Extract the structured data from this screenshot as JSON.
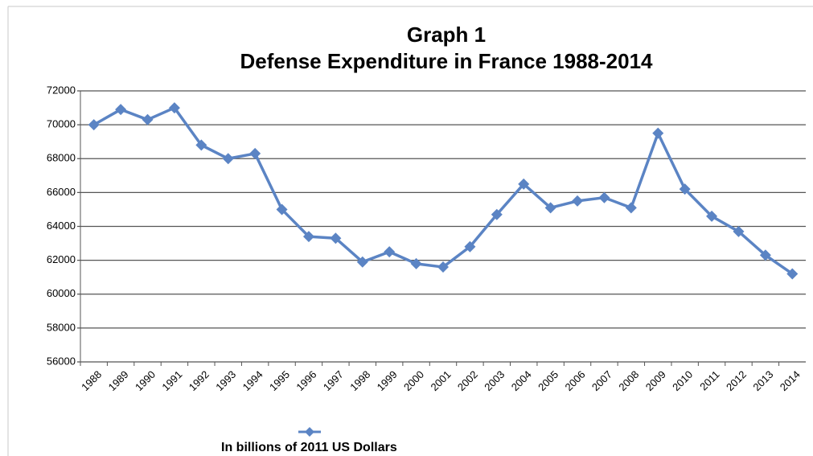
{
  "chart_data": {
    "type": "line",
    "title": "Graph 1",
    "subtitle": "Defense Expenditure in France 1988-2014",
    "categories": [
      "1988",
      "1989",
      "1990",
      "1991",
      "1992",
      "1993",
      "1994",
      "1995",
      "1996",
      "1997",
      "1998",
      "1999",
      "2000",
      "2001",
      "2002",
      "2003",
      "2004",
      "2005",
      "2006",
      "2007",
      "2008",
      "2009",
      "2010",
      "2011",
      "2012",
      "2013",
      "2014"
    ],
    "series": [
      {
        "name": "In billions of 2011 US Dollars",
        "color": "#5b84c4",
        "values": [
          70000,
          70900,
          70300,
          71000,
          68800,
          68000,
          68300,
          65000,
          63400,
          63300,
          61900,
          62500,
          61800,
          61600,
          62800,
          64700,
          66500,
          65100,
          65500,
          65700,
          65100,
          69500,
          66200,
          64600,
          63700,
          62300,
          61200
        ]
      }
    ],
    "ylim": [
      56000,
      72000
    ],
    "yticks": [
      56000,
      58000,
      60000,
      62000,
      64000,
      66000,
      68000,
      70000,
      72000
    ],
    "grid": true,
    "legend": "bottom"
  }
}
